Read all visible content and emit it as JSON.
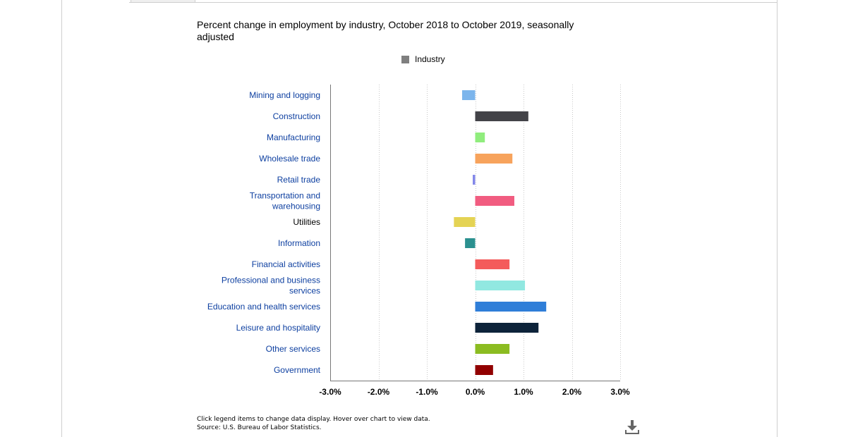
{
  "chart_data": {
    "type": "bar",
    "orientation": "horizontal",
    "title": "Percent change in employment by industry, October 2018 to October 2019, seasonally adjusted",
    "legend": [
      {
        "name": "Industry",
        "color": "#7f7f7f"
      }
    ],
    "legend_position": "top-center",
    "xlim": [
      -3.0,
      3.0
    ],
    "x_ticks": [
      "-3.0%",
      "-2.0%",
      "-1.0%",
      "0.0%",
      "1.0%",
      "2.0%",
      "3.0%"
    ],
    "x_tick_values": [
      -3.0,
      -2.0,
      -1.0,
      0.0,
      1.0,
      2.0,
      3.0
    ],
    "grid": "vertical dotted",
    "categories": [
      {
        "lines": [
          "Mining and logging"
        ],
        "value": -0.27,
        "color": "#7cb5ec",
        "link": true
      },
      {
        "lines": [
          "Construction"
        ],
        "value": 1.1,
        "color": "#434348",
        "link": true
      },
      {
        "lines": [
          "Manufacturing"
        ],
        "value": 0.2,
        "color": "#90ed7d",
        "link": true
      },
      {
        "lines": [
          "Wholesale trade"
        ],
        "value": 0.77,
        "color": "#f7a35c",
        "link": true
      },
      {
        "lines": [
          "Retail trade"
        ],
        "value": -0.05,
        "color": "#8085e9",
        "link": true
      },
      {
        "lines": [
          "Transportation and",
          "warehousing"
        ],
        "value": 0.81,
        "color": "#f15c80",
        "link": true
      },
      {
        "lines": [
          "Utilities"
        ],
        "value": -0.44,
        "color": "#e4d354",
        "link": false
      },
      {
        "lines": [
          "Information"
        ],
        "value": -0.21,
        "color": "#2b908f",
        "link": true
      },
      {
        "lines": [
          "Financial activities"
        ],
        "value": 0.71,
        "color": "#f45b5b",
        "link": true
      },
      {
        "lines": [
          "Professional and business",
          "services"
        ],
        "value": 1.03,
        "color": "#91e8e1",
        "link": true
      },
      {
        "lines": [
          "Education and health services"
        ],
        "value": 1.47,
        "color": "#2f7ed8",
        "link": true
      },
      {
        "lines": [
          "Leisure and hospitality"
        ],
        "value": 1.31,
        "color": "#0d233a",
        "link": true
      },
      {
        "lines": [
          "Other services"
        ],
        "value": 0.71,
        "color": "#8bbc21",
        "link": true
      },
      {
        "lines": [
          "Government"
        ],
        "value": 0.37,
        "color": "#910000",
        "link": true
      }
    ]
  },
  "footnote": {
    "line1": "Click legend items to change data display. Hover over chart to view data.",
    "line2": "Source: U.S. Bureau of Labor Statistics."
  },
  "icons": {
    "download": "download-icon"
  }
}
